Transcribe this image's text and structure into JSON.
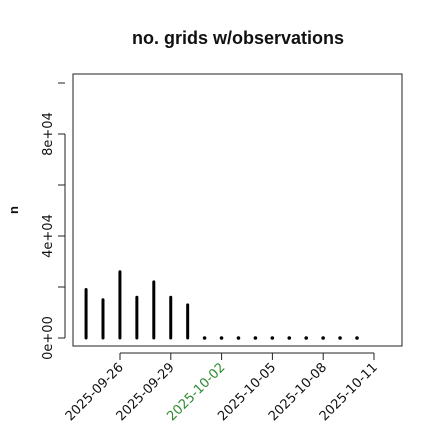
{
  "chart_data": {
    "type": "bar",
    "title": "no. grids w/observations",
    "xlabel": "",
    "ylabel": "n",
    "ylim": [
      -2000,
      102000
    ],
    "yticks": [
      0,
      40000,
      80000
    ],
    "ytick_labels": [
      "0e+00",
      "4e+04",
      "8e+04"
    ],
    "xlim": [
      "2025-09-24",
      "2025-10-11"
    ],
    "xticks": [
      "2025-09-26",
      "2025-09-29",
      "2025-10-02",
      "2025-10-05",
      "2025-10-08",
      "2025-10-11"
    ],
    "xtick_colors": [
      "#111111",
      "#111111",
      "#2e8b2e",
      "#111111",
      "#111111",
      "#111111"
    ],
    "series": [
      {
        "x": [
          "2025-09-25",
          "2025-09-26",
          "2025-09-27",
          "2025-09-28",
          "2025-09-29",
          "2025-09-30",
          "2025-10-01",
          "2025-10-02",
          "2025-10-03",
          "2025-10-04",
          "2025-10-05",
          "2025-10-06",
          "2025-10-07",
          "2025-10-08",
          "2025-10-09",
          "2025-10-10",
          "2025-10-11"
        ],
        "values": [
          19000,
          15000,
          26000,
          16000,
          22000,
          16000,
          13000,
          500,
          500,
          500,
          500,
          500,
          500,
          500,
          500,
          500,
          500
        ]
      }
    ],
    "colors": {
      "bar": "#000000",
      "text": "#111111"
    },
    "grid": false,
    "legend": "none"
  }
}
